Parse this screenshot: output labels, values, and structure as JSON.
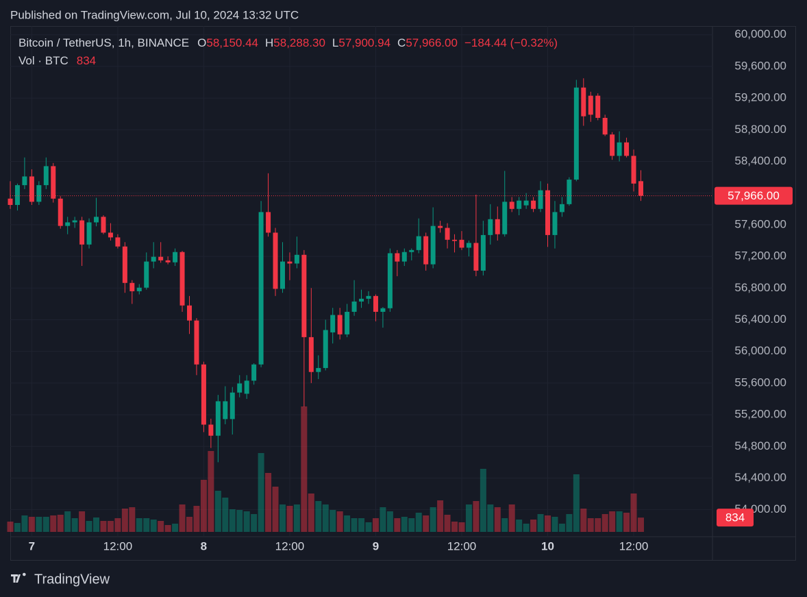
{
  "published": "Published on TradingView.com, Jul 10, 2024 13:32 UTC",
  "brand": "TradingView",
  "chart_data": {
    "type": "candlestick",
    "symbol": "Bitcoin / TetherUS, 1h, BINANCE",
    "ohlc_keys": [
      "O",
      "H",
      "L",
      "C"
    ],
    "ohlc_labels": [
      "58,150.44",
      "58,288.30",
      "57,900.94",
      "57,966.00"
    ],
    "change_label": "−184.44 (−0.32%)",
    "volume_title": "Vol · BTC",
    "up_color": "#089981",
    "down_color": "#f23645",
    "grid": true,
    "ylim": [
      53720,
      60110
    ],
    "yticks": [
      {
        "value": 54000,
        "label": "54,000.00"
      },
      {
        "value": 54400,
        "label": "54,400.00"
      },
      {
        "value": 54800,
        "label": "54,800.00"
      },
      {
        "value": 55200,
        "label": "55,200.00"
      },
      {
        "value": 55600,
        "label": "55,600.00"
      },
      {
        "value": 56000,
        "label": "56,000.00"
      },
      {
        "value": 56400,
        "label": "56,400.00"
      },
      {
        "value": 56800,
        "label": "56,800.00"
      },
      {
        "value": 57200,
        "label": "57,200.00"
      },
      {
        "value": 57600,
        "label": "57,600.00"
      },
      {
        "value": 58000,
        "label": "58,000.00"
      },
      {
        "value": 58400,
        "label": "58,400.00"
      },
      {
        "value": 58800,
        "label": "58,800.00"
      },
      {
        "value": 59200,
        "label": "59,200.00"
      },
      {
        "value": 59600,
        "label": "59,600.00"
      },
      {
        "value": 60000,
        "label": "60,000.00"
      }
    ],
    "categories": [
      null,
      null,
      null,
      "7",
      null,
      null,
      null,
      null,
      null,
      null,
      null,
      null,
      null,
      null,
      null,
      "12:00",
      null,
      null,
      null,
      null,
      null,
      null,
      null,
      null,
      null,
      null,
      null,
      "8",
      null,
      null,
      null,
      null,
      null,
      null,
      null,
      null,
      null,
      null,
      null,
      "12:00",
      null,
      null,
      null,
      null,
      null,
      null,
      null,
      null,
      null,
      null,
      null,
      "9",
      null,
      null,
      null,
      null,
      null,
      null,
      null,
      null,
      null,
      null,
      null,
      "12:00",
      null,
      null,
      null,
      null,
      null,
      null,
      null,
      null,
      null,
      null,
      null,
      "10",
      null,
      null,
      null,
      null,
      null,
      null,
      null,
      null,
      null,
      null,
      null,
      "12:00",
      null
    ],
    "open": [
      57930,
      57850,
      58100,
      58210,
      57890,
      58100,
      58340,
      57930,
      57585,
      57630,
      57655,
      57350,
      57630,
      57700,
      57500,
      57440,
      57325,
      56865,
      56760,
      56805,
      57135,
      57195,
      57150,
      57125,
      57255,
      56580,
      56390,
      55835,
      55075,
      54935,
      55145,
      55145,
      55480,
      55465,
      55630,
      55835,
      57760,
      57500,
      56790,
      57135,
      57110,
      57220,
      56180,
      55740,
      55790,
      56240,
      56460,
      56215,
      56500,
      56630,
      56665,
      56700,
      56500,
      56545,
      57240,
      57135,
      57255,
      57280,
      57455,
      57100,
      57585,
      57560,
      57410,
      57410,
      57310,
      57370,
      57020,
      57470,
      57670,
      57480,
      57890,
      57800,
      57845,
      57905,
      57800,
      58035,
      57470,
      57760,
      57860,
      58170,
      59333,
      59230,
      59230,
      58950,
      58740,
      58470,
      58640,
      58470,
      58150.44
    ],
    "high": [
      58150,
      58120,
      58450,
      58300,
      58150,
      58450,
      58380,
      57960,
      57700,
      57700,
      57700,
      57680,
      57940,
      57720,
      57620,
      57480,
      57380,
      56900,
      56850,
      57250,
      57380,
      57380,
      57200,
      57300,
      57270,
      56700,
      56420,
      55870,
      55150,
      55450,
      55560,
      55550,
      55700,
      55700,
      55850,
      57900,
      58250,
      57560,
      57380,
      57250,
      57450,
      57280,
      56800,
      55950,
      56400,
      56550,
      56550,
      56600,
      56900,
      56780,
      56760,
      56720,
      56560,
      57300,
      57280,
      57300,
      57300,
      57680,
      57500,
      57820,
      57650,
      57620,
      57480,
      57520,
      57400,
      57980,
      57650,
      57860,
      57830,
      58280,
      57950,
      57950,
      58000,
      57950,
      58150,
      58120,
      57900,
      57950,
      58200,
      59430,
      59450,
      59280,
      59260,
      58990,
      58770,
      58780,
      58700,
      58550,
      58288.3
    ],
    "low": [
      57800,
      57780,
      58050,
      57850,
      57850,
      58050,
      57880,
      57550,
      57480,
      57560,
      57080,
      57300,
      57580,
      57480,
      57400,
      57300,
      56740,
      56600,
      56720,
      56780,
      57050,
      57120,
      57100,
      57080,
      56500,
      56220,
      55700,
      54980,
      54780,
      54600,
      55080,
      54950,
      55420,
      55400,
      55580,
      55800,
      57450,
      56700,
      56740,
      56900,
      57050,
      55300,
      55600,
      55650,
      55760,
      56100,
      56150,
      56180,
      56450,
      56550,
      56600,
      56380,
      56300,
      56500,
      56950,
      57080,
      57150,
      57240,
      57020,
      57050,
      57500,
      57300,
      57250,
      57280,
      57200,
      56950,
      56960,
      57350,
      57400,
      57450,
      57760,
      57720,
      57800,
      57760,
      57760,
      57320,
      57300,
      57700,
      57840,
      58150,
      58850,
      58900,
      58920,
      58720,
      58420,
      58400,
      58450,
      58020,
      57900.94
    ],
    "close": [
      57850,
      58100,
      58210,
      57890,
      58100,
      58340,
      57930,
      57585,
      57630,
      57655,
      57350,
      57630,
      57700,
      57500,
      57440,
      57325,
      56865,
      56760,
      56805,
      57135,
      57195,
      57150,
      57125,
      57255,
      56580,
      56390,
      55835,
      55075,
      54935,
      55370,
      55370,
      55480,
      55595,
      55630,
      55835,
      57760,
      57500,
      56790,
      57135,
      57110,
      57220,
      56180,
      55740,
      55790,
      56270,
      56460,
      56215,
      56500,
      56630,
      56665,
      56700,
      56500,
      56545,
      57240,
      57135,
      57255,
      57280,
      57455,
      57100,
      57585,
      57560,
      57410,
      57395,
      57310,
      57370,
      57020,
      57470,
      57670,
      57480,
      57890,
      57800,
      57905,
      57905,
      57800,
      58035,
      57470,
      57760,
      57860,
      58170,
      59333,
      58970,
      58990,
      58950,
      58740,
      58470,
      58640,
      58470,
      58120,
      57966.0
    ],
    "volume": [
      600,
      520,
      960,
      880,
      880,
      880,
      960,
      1000,
      1200,
      800,
      1200,
      640,
      840,
      640,
      640,
      800,
      1360,
      1440,
      800,
      800,
      720,
      640,
      400,
      480,
      1600,
      880,
      1520,
      3040,
      4720,
      2400,
      2000,
      1320,
      1280,
      1200,
      1040,
      4600,
      3440,
      2640,
      1600,
      1520,
      1600,
      7320,
      2240,
      1800,
      1600,
      1280,
      1200,
      960,
      800,
      800,
      560,
      800,
      1440,
      1200,
      800,
      880,
      800,
      1120,
      960,
      1440,
      1840,
      1000,
      600,
      560,
      1600,
      1800,
      3680,
      1600,
      1440,
      800,
      1600,
      720,
      480,
      720,
      1040,
      960,
      880,
      480,
      1040,
      3360,
      1360,
      800,
      800,
      1040,
      1200,
      1200,
      1120,
      2240,
      834
    ]
  }
}
